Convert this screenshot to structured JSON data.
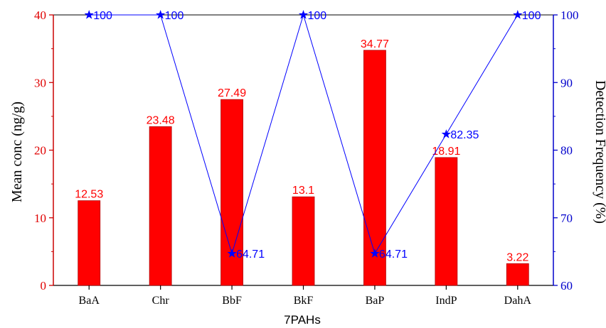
{
  "chart_data": {
    "type": "bar",
    "xlabel": "7PAHs",
    "ylabel": "Mean conc (ng/g)",
    "y2label": "Detection Frequency (%)",
    "categories": [
      "BaA",
      "Chr",
      "BbF",
      "BkF",
      "BaP",
      "IndP",
      "DahA"
    ],
    "ylim": [
      0,
      40
    ],
    "yticks": [
      0,
      10,
      20,
      30,
      40
    ],
    "y2lim": [
      60,
      100
    ],
    "y2ticks": [
      60,
      70,
      80,
      90,
      100
    ],
    "series": [
      {
        "type": "bar",
        "axis": "left",
        "values": [
          12.53,
          23.48,
          27.49,
          13.1,
          34.77,
          18.91,
          3.22
        ],
        "labels": [
          "12.53",
          "23.48",
          "27.49",
          "13.1",
          "34.77",
          "18.91",
          "3.22"
        ],
        "color": "#ff0000"
      },
      {
        "type": "line",
        "axis": "right",
        "marker": "star",
        "values": [
          100,
          100,
          64.71,
          100,
          64.71,
          82.35,
          100
        ],
        "labels": [
          "100",
          "100",
          "64.71",
          "100",
          "64.71",
          "82.35",
          "100"
        ],
        "color": "#0000ff"
      }
    ],
    "colors": {
      "left_axis": "#cc0000",
      "right_axis": "#0000cc",
      "bar_fill": "#ff0000",
      "line": "#0000ff"
    },
    "grid": false,
    "legend": "none"
  }
}
